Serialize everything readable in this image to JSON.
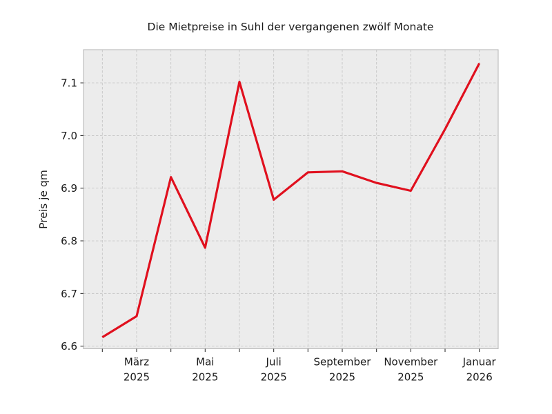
{
  "chart_data": {
    "type": "line",
    "title": "Die Mietpreise in Suhl der vergangenen zwölf Monate",
    "ylabel": "Preis je qm",
    "x": [
      0,
      1,
      2,
      3,
      4,
      5,
      6,
      7,
      8,
      9,
      10,
      11
    ],
    "values": [
      6.617,
      6.657,
      6.921,
      6.787,
      7.102,
      6.878,
      6.93,
      6.932,
      6.91,
      6.895,
      7.012,
      7.137
    ],
    "x_ticks": [
      {
        "pos": 1,
        "month": "März",
        "year": "2025"
      },
      {
        "pos": 3,
        "month": "Mai",
        "year": "2025"
      },
      {
        "pos": 5,
        "month": "Juli",
        "year": "2025"
      },
      {
        "pos": 7,
        "month": "September",
        "year": "2025"
      },
      {
        "pos": 9,
        "month": "November",
        "year": "2025"
      },
      {
        "pos": 11,
        "month": "Januar",
        "year": "2026"
      }
    ],
    "y_ticks": [
      "6.6",
      "6.7",
      "6.8",
      "6.9",
      "7.0",
      "7.1"
    ],
    "ylim": [
      6.595,
      7.163
    ],
    "xlim": [
      -0.55,
      11.55
    ],
    "grid": true,
    "legend": false,
    "grid_style": "dashed",
    "line_color": "#e0101e",
    "plot_bg": "#ececec",
    "grid_color": "#c6c6c6",
    "spine_color": "#b3b3b3",
    "tick_color": "#333333"
  }
}
